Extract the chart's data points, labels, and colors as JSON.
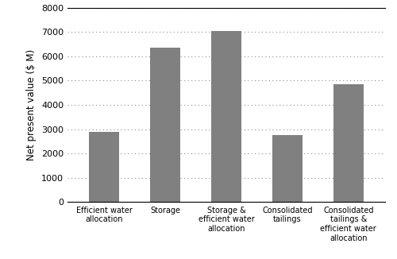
{
  "categories": [
    "Efficient water\nallocation",
    "Storage",
    "Storage &\nefficient water\nallocation",
    "Consolidated\ntailings",
    "Consolidated\ntailings &\nefficient water\nallocation"
  ],
  "values": [
    2900,
    6350,
    7050,
    2750,
    4850
  ],
  "bar_color": "#808080",
  "ylabel": "Net present value ($ M)",
  "ylim": [
    0,
    8000
  ],
  "yticks": [
    0,
    1000,
    2000,
    3000,
    4000,
    5000,
    6000,
    7000,
    8000
  ],
  "grid": true,
  "bar_width": 0.5,
  "background_color": "#ffffff",
  "figsize": [
    5.0,
    3.26
  ],
  "dpi": 100
}
